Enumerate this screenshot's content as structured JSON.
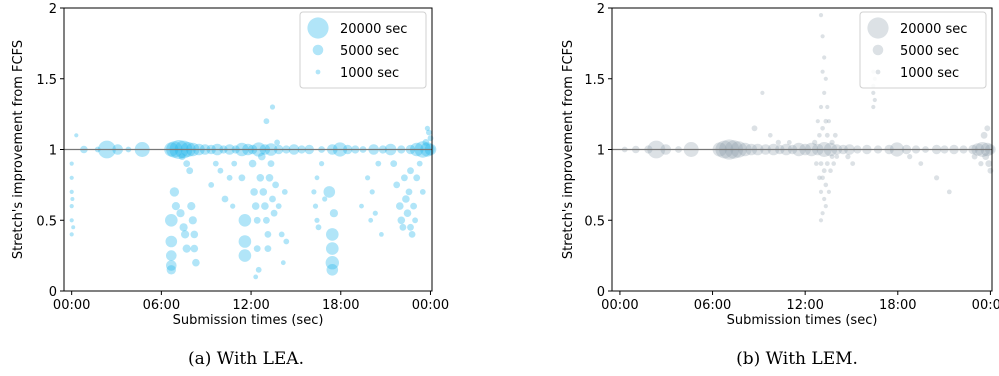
{
  "chart_data": [
    {
      "type": "scatter",
      "caption": "(a) With LEA.",
      "xlabel": "Submission times (sec)",
      "ylabel": "Stretch's improvement from FCFS",
      "x_ticks": [
        "00:00",
        "06:00",
        "12:00",
        "18:00",
        "00:00"
      ],
      "y_ticks": [
        "0",
        "0.5",
        "1",
        "1.5",
        "2"
      ],
      "xlim": [
        0,
        24
      ],
      "ylim": [
        0,
        2
      ],
      "reference_line": 1,
      "color": "#1fb4ec",
      "legend": {
        "placement": "top-right",
        "entries": [
          {
            "label": "20000 sec",
            "size": 20000
          },
          {
            "label": "5000 sec",
            "size": 5000
          },
          {
            "label": "1000 sec",
            "size": 1000
          }
        ]
      },
      "points": [
        [
          0.8,
          1.1,
          800
        ],
        [
          1.3,
          1.0,
          2500
        ],
        [
          2.2,
          1.0,
          1500
        ],
        [
          2.8,
          1.0,
          14000
        ],
        [
          3.5,
          1.0,
          5000
        ],
        [
          4.2,
          1.0,
          1500
        ],
        [
          5.1,
          1.0,
          10000
        ],
        [
          7.0,
          1.0,
          9000
        ],
        [
          7.2,
          1.0,
          12000
        ],
        [
          7.5,
          1.0,
          16000
        ],
        [
          7.8,
          1.0,
          14000
        ],
        [
          8.1,
          1.0,
          10000
        ],
        [
          8.4,
          1.0,
          8000
        ],
        [
          8.8,
          1.0,
          6000
        ],
        [
          9.2,
          1.0,
          5000
        ],
        [
          9.6,
          1.0,
          4000
        ],
        [
          10.0,
          1.0,
          6000
        ],
        [
          10.4,
          1.0,
          3000
        ],
        [
          10.8,
          1.0,
          5000
        ],
        [
          11.2,
          1.0,
          3000
        ],
        [
          11.6,
          1.0,
          8000
        ],
        [
          12.0,
          1.0,
          6000
        ],
        [
          12.3,
          1.0,
          4000
        ],
        [
          12.7,
          1.0,
          9000
        ],
        [
          13.1,
          1.0,
          5000
        ],
        [
          13.5,
          1.0,
          7000
        ],
        [
          14.0,
          1.0,
          4000
        ],
        [
          14.5,
          1.0,
          3000
        ],
        [
          15.0,
          1.0,
          5000
        ],
        [
          15.5,
          1.0,
          3000
        ],
        [
          16.0,
          1.0,
          4000
        ],
        [
          16.8,
          1.0,
          2000
        ],
        [
          17.5,
          1.0,
          5000
        ],
        [
          18.0,
          1.0,
          9000
        ],
        [
          18.5,
          1.0,
          4000
        ],
        [
          19.0,
          1.0,
          3000
        ],
        [
          19.5,
          1.0,
          2000
        ],
        [
          20.2,
          1.0,
          5000
        ],
        [
          20.8,
          1.0,
          3000
        ],
        [
          21.3,
          1.0,
          6000
        ],
        [
          22.0,
          1.0,
          3000
        ],
        [
          22.6,
          1.0,
          4000
        ],
        [
          23.0,
          1.0,
          8000
        ],
        [
          23.4,
          1.0,
          12000
        ],
        [
          23.7,
          1.0,
          9000
        ],
        [
          23.9,
          1.0,
          6000
        ],
        [
          0.5,
          0.9,
          800
        ],
        [
          0.5,
          0.8,
          800
        ],
        [
          0.5,
          0.7,
          800
        ],
        [
          0.5,
          0.6,
          800
        ],
        [
          0.5,
          0.5,
          800
        ],
        [
          0.5,
          0.4,
          800
        ],
        [
          0.6,
          0.45,
          700
        ],
        [
          0.55,
          0.65,
          700
        ],
        [
          7.0,
          0.5,
          7000
        ],
        [
          7.0,
          0.35,
          6000
        ],
        [
          7.0,
          0.25,
          5000
        ],
        [
          7.0,
          0.18,
          5000
        ],
        [
          7.0,
          0.15,
          4000
        ],
        [
          7.2,
          0.7,
          4000
        ],
        [
          7.3,
          0.6,
          3000
        ],
        [
          7.6,
          0.55,
          3000
        ],
        [
          7.8,
          0.45,
          3000
        ],
        [
          7.9,
          0.4,
          3000
        ],
        [
          8.0,
          0.3,
          3000
        ],
        [
          8.2,
          0.85,
          2000
        ],
        [
          8.3,
          0.6,
          3000
        ],
        [
          8.4,
          0.5,
          3000
        ],
        [
          8.5,
          0.4,
          2500
        ],
        [
          8.5,
          0.3,
          2500
        ],
        [
          8.6,
          0.2,
          2500
        ],
        [
          8.0,
          0.9,
          2000
        ],
        [
          7.7,
          0.95,
          2000
        ],
        [
          9.6,
          0.75,
          1500
        ],
        [
          9.9,
          0.9,
          1500
        ],
        [
          10.2,
          0.85,
          1500
        ],
        [
          10.5,
          0.65,
          2000
        ],
        [
          10.8,
          0.8,
          1500
        ],
        [
          11.1,
          0.9,
          1500
        ],
        [
          11.0,
          0.6,
          1200
        ],
        [
          11.8,
          0.5,
          7000
        ],
        [
          11.8,
          0.35,
          7000
        ],
        [
          11.8,
          0.25,
          7000
        ],
        [
          11.6,
          0.8,
          2000
        ],
        [
          12.3,
          0.9,
          2500
        ],
        [
          12.4,
          0.7,
          2500
        ],
        [
          12.5,
          0.6,
          2500
        ],
        [
          12.6,
          0.5,
          2000
        ],
        [
          12.6,
          0.3,
          2000
        ],
        [
          12.7,
          0.15,
          1500
        ],
        [
          12.8,
          0.8,
          2500
        ],
        [
          12.9,
          0.95,
          2500
        ],
        [
          13.0,
          0.7,
          2500
        ],
        [
          13.1,
          0.6,
          2500
        ],
        [
          13.2,
          0.5,
          2000
        ],
        [
          13.3,
          0.4,
          2000
        ],
        [
          13.3,
          0.3,
          2000
        ],
        [
          13.4,
          0.8,
          2500
        ],
        [
          13.5,
          0.9,
          2000
        ],
        [
          13.6,
          0.65,
          2000
        ],
        [
          13.7,
          0.55,
          2000
        ],
        [
          13.8,
          0.75,
          2000
        ],
        [
          14.0,
          0.6,
          1500
        ],
        [
          14.2,
          0.4,
          1500
        ],
        [
          14.4,
          0.7,
          1500
        ],
        [
          12.5,
          0.1,
          1000
        ],
        [
          13.2,
          1.2,
          1500
        ],
        [
          13.6,
          1.3,
          1200
        ],
        [
          13.9,
          1.05,
          1500
        ],
        [
          14.5,
          0.35,
          1500
        ],
        [
          14.3,
          0.2,
          1000
        ],
        [
          16.3,
          0.7,
          1200
        ],
        [
          16.4,
          0.6,
          1200
        ],
        [
          16.5,
          0.5,
          1200
        ],
        [
          16.6,
          0.45,
          1500
        ],
        [
          16.5,
          0.8,
          1000
        ],
        [
          16.8,
          0.9,
          1200
        ],
        [
          17.0,
          0.65,
          1200
        ],
        [
          17.3,
          0.7,
          6000
        ],
        [
          17.5,
          0.4,
          7000
        ],
        [
          17.5,
          0.3,
          7000
        ],
        [
          17.5,
          0.2,
          8000
        ],
        [
          17.5,
          0.15,
          6000
        ],
        [
          17.6,
          0.55,
          3000
        ],
        [
          19.4,
          0.6,
          1000
        ],
        [
          19.8,
          0.8,
          1200
        ],
        [
          20.1,
          0.7,
          1200
        ],
        [
          20.3,
          0.55,
          1200
        ],
        [
          20.5,
          0.9,
          1500
        ],
        [
          20.7,
          0.4,
          1000
        ],
        [
          20.0,
          0.5,
          1000
        ],
        [
          21.5,
          0.9,
          2000
        ],
        [
          21.7,
          0.75,
          2000
        ],
        [
          21.9,
          0.6,
          2500
        ],
        [
          22.0,
          0.5,
          2500
        ],
        [
          22.1,
          0.45,
          2000
        ],
        [
          22.2,
          0.8,
          2000
        ],
        [
          22.3,
          0.65,
          2500
        ],
        [
          22.4,
          0.55,
          2500
        ],
        [
          22.5,
          0.7,
          2000
        ],
        [
          22.6,
          0.45,
          2000
        ],
        [
          22.7,
          0.4,
          2000
        ],
        [
          22.8,
          0.6,
          2000
        ],
        [
          22.9,
          0.5,
          1500
        ],
        [
          23.0,
          0.8,
          2000
        ],
        [
          23.2,
          0.9,
          1500
        ],
        [
          23.4,
          0.7,
          1500
        ],
        [
          22.6,
          0.85,
          2000
        ],
        [
          23.6,
          1.05,
          2000
        ],
        [
          23.8,
          1.12,
          1500
        ],
        [
          23.9,
          1.08,
          1500
        ],
        [
          23.7,
          1.15,
          1200
        ]
      ]
    },
    {
      "type": "scatter",
      "caption": "(b) With LEM.",
      "xlabel": "Submission times (sec)",
      "ylabel": "Stretch's improvement from FCFS",
      "x_ticks": [
        "00:00",
        "06:00",
        "12:00",
        "18:00",
        "00:00"
      ],
      "y_ticks": [
        "0",
        "0.5",
        "1",
        "1.5",
        "2"
      ],
      "xlim": [
        0,
        24
      ],
      "ylim": [
        0,
        2
      ],
      "reference_line": 1,
      "color": "#8a9aa8",
      "legend": {
        "placement": "top-right",
        "entries": [
          {
            "label": "20000 sec",
            "size": 20000
          },
          {
            "label": "5000 sec",
            "size": 5000
          },
          {
            "label": "1000 sec",
            "size": 1000
          }
        ]
      },
      "points": [
        [
          0.8,
          1.0,
          1500
        ],
        [
          1.5,
          1.0,
          2500
        ],
        [
          2.3,
          1.0,
          3000
        ],
        [
          2.8,
          1.0,
          14000
        ],
        [
          3.4,
          1.0,
          5000
        ],
        [
          4.2,
          1.0,
          2000
        ],
        [
          5.0,
          1.0,
          10000
        ],
        [
          6.8,
          1.0,
          9000
        ],
        [
          7.1,
          1.0,
          14000
        ],
        [
          7.4,
          1.0,
          18000
        ],
        [
          7.7,
          1.0,
          15000
        ],
        [
          8.0,
          1.0,
          12000
        ],
        [
          8.4,
          1.0,
          8000
        ],
        [
          8.8,
          1.0,
          6000
        ],
        [
          9.2,
          1.0,
          6000
        ],
        [
          9.7,
          1.0,
          5000
        ],
        [
          10.2,
          1.0,
          6000
        ],
        [
          10.6,
          1.0,
          4000
        ],
        [
          11.0,
          1.0,
          6000
        ],
        [
          11.4,
          1.0,
          4000
        ],
        [
          11.8,
          1.0,
          8000
        ],
        [
          12.2,
          1.0,
          6000
        ],
        [
          12.6,
          1.0,
          8000
        ],
        [
          13.0,
          1.0,
          6000
        ],
        [
          13.4,
          1.0,
          10000
        ],
        [
          13.8,
          1.0,
          8000
        ],
        [
          14.2,
          1.0,
          5000
        ],
        [
          14.6,
          1.0,
          4000
        ],
        [
          15.0,
          1.0,
          5000
        ],
        [
          15.5,
          1.0,
          3000
        ],
        [
          16.1,
          1.0,
          4000
        ],
        [
          16.8,
          1.0,
          3000
        ],
        [
          17.5,
          1.0,
          4000
        ],
        [
          18.0,
          1.0,
          9000
        ],
        [
          18.6,
          1.0,
          4000
        ],
        [
          19.2,
          1.0,
          3000
        ],
        [
          19.8,
          1.0,
          2000
        ],
        [
          20.5,
          1.0,
          4000
        ],
        [
          21.0,
          1.0,
          3000
        ],
        [
          21.6,
          1.0,
          4000
        ],
        [
          22.2,
          1.0,
          3000
        ],
        [
          22.8,
          1.0,
          4000
        ],
        [
          23.1,
          1.0,
          7000
        ],
        [
          23.4,
          1.0,
          10000
        ],
        [
          23.7,
          1.0,
          8000
        ],
        [
          23.9,
          1.0,
          5000
        ],
        [
          13.2,
          1.95,
          800
        ],
        [
          13.3,
          1.8,
          800
        ],
        [
          13.4,
          1.65,
          800
        ],
        [
          13.3,
          1.55,
          800
        ],
        [
          13.5,
          1.5,
          800
        ],
        [
          13.4,
          1.4,
          800
        ],
        [
          13.6,
          1.3,
          800
        ],
        [
          13.2,
          1.3,
          800
        ],
        [
          13.5,
          1.2,
          900
        ],
        [
          13.3,
          1.15,
          900
        ],
        [
          13.6,
          1.1,
          1000
        ],
        [
          13.1,
          1.1,
          900
        ],
        [
          13.7,
          1.2,
          800
        ],
        [
          13.0,
          1.2,
          800
        ],
        [
          13.2,
          0.9,
          1000
        ],
        [
          13.4,
          0.85,
          1000
        ],
        [
          13.3,
          0.8,
          900
        ],
        [
          13.5,
          0.75,
          900
        ],
        [
          13.2,
          0.7,
          800
        ],
        [
          13.4,
          0.65,
          800
        ],
        [
          13.3,
          0.55,
          800
        ],
        [
          13.2,
          0.5,
          800
        ],
        [
          13.5,
          0.6,
          800
        ],
        [
          13.6,
          0.9,
          1000
        ],
        [
          13.1,
          0.8,
          900
        ],
        [
          12.9,
          0.9,
          900
        ],
        [
          13.8,
          0.85,
          900
        ],
        [
          13.9,
          0.95,
          1000
        ],
        [
          14.0,
          0.9,
          900
        ],
        [
          12.8,
          1.05,
          1200
        ],
        [
          13.9,
          1.05,
          1200
        ],
        [
          14.1,
          1.1,
          1000
        ],
        [
          14.2,
          0.95,
          900
        ],
        [
          13.7,
          0.7,
          800
        ],
        [
          16.5,
          1.4,
          800
        ],
        [
          16.5,
          1.45,
          800
        ],
        [
          16.6,
          1.5,
          800
        ],
        [
          16.5,
          1.55,
          800
        ],
        [
          16.6,
          1.35,
          800
        ],
        [
          16.5,
          1.3,
          800
        ],
        [
          9.5,
          1.4,
          800
        ],
        [
          10.0,
          1.1,
          900
        ],
        [
          10.5,
          1.05,
          1200
        ],
        [
          9.0,
          1.15,
          1500
        ],
        [
          11.2,
          1.05,
          1000
        ],
        [
          23.5,
          1.1,
          2000
        ],
        [
          23.7,
          1.15,
          1500
        ],
        [
          23.8,
          0.9,
          2000
        ],
        [
          23.9,
          0.85,
          1500
        ],
        [
          23.6,
          0.95,
          2000
        ],
        [
          22.9,
          0.95,
          1500
        ],
        [
          23.3,
          0.9,
          1200
        ],
        [
          20.5,
          0.8,
          1200
        ],
        [
          21.3,
          0.7,
          1000
        ],
        [
          14.9,
          0.95,
          1200
        ],
        [
          15.2,
          0.9,
          1000
        ],
        [
          18.8,
          0.95,
          1200
        ],
        [
          19.5,
          0.9,
          1000
        ]
      ]
    }
  ]
}
